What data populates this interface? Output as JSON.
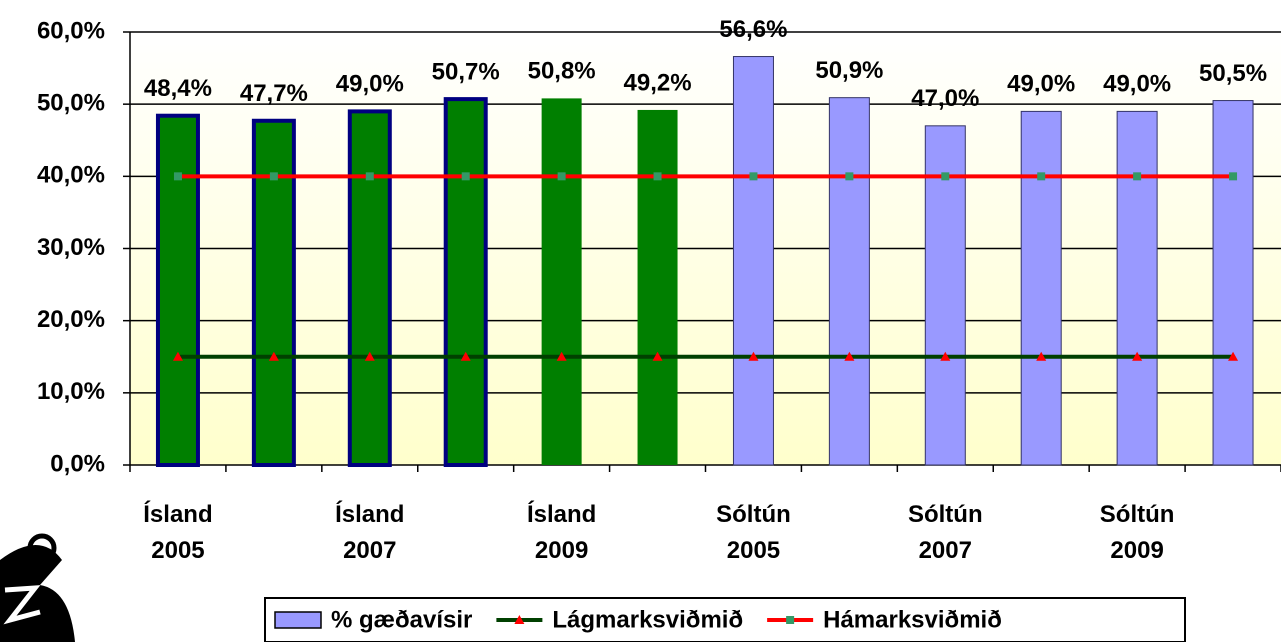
{
  "chart_data": {
    "type": "bar",
    "categories": [
      "Ísland 2005",
      null,
      "Ísland 2007",
      null,
      "Ísland 2009",
      null,
      "Sóltún 2005",
      null,
      "Sóltún 2007",
      null,
      "Sóltún 2009",
      null
    ],
    "series": [
      {
        "name": "% gæðavísir",
        "type": "bar",
        "color": "#9999ff",
        "colors": [
          "#007f00",
          "#007f00",
          "#007f00",
          "#007f00",
          "#007f00",
          "#007f00",
          "#9999ff",
          "#9999ff",
          "#9999ff",
          "#9999ff",
          "#9999ff",
          "#9999ff"
        ],
        "edgecolors": [
          "#000080",
          "#000080",
          "#000080",
          "#000080",
          "#007f00",
          "#007f00",
          "#333366",
          "#333366",
          "#333366",
          "#333366",
          "#333366",
          "#333366"
        ],
        "values": [
          48.4,
          47.7,
          49.0,
          50.7,
          50.8,
          49.2,
          56.6,
          50.9,
          47.0,
          49.0,
          49.0,
          50.5
        ],
        "value_labels": [
          "48,4%",
          "47,7%",
          "49,0%",
          "50,7%",
          "50,8%",
          "49,2%",
          "56,6%",
          "50,9%",
          "47,0%",
          "49,0%",
          "49,0%",
          "50,5%"
        ]
      },
      {
        "name": "Lágmarksviðmið",
        "type": "line",
        "color": "#004000",
        "marker": "triangle",
        "marker_color": "#ff0000",
        "values": [
          15,
          15,
          15,
          15,
          15,
          15,
          15,
          15,
          15,
          15,
          15,
          15
        ]
      },
      {
        "name": "Hámarksviðmið",
        "type": "line",
        "color": "#ff0000",
        "marker": "square",
        "marker_color": "#339966",
        "values": [
          40,
          40,
          40,
          40,
          40,
          40,
          40,
          40,
          40,
          40,
          40,
          40
        ]
      }
    ],
    "ylim": [
      0,
      60
    ],
    "yticks": [
      {
        "value": 0,
        "label": "0,0%"
      },
      {
        "value": 10,
        "label": "10,0%"
      },
      {
        "value": 20,
        "label": "20,0%"
      },
      {
        "value": 30,
        "label": "30,0%"
      },
      {
        "value": 40,
        "label": "40,0%"
      },
      {
        "value": 50,
        "label": "50,0%"
      },
      {
        "value": 60,
        "label": "60,0%"
      }
    ],
    "grid": true,
    "legend": "bottom"
  }
}
